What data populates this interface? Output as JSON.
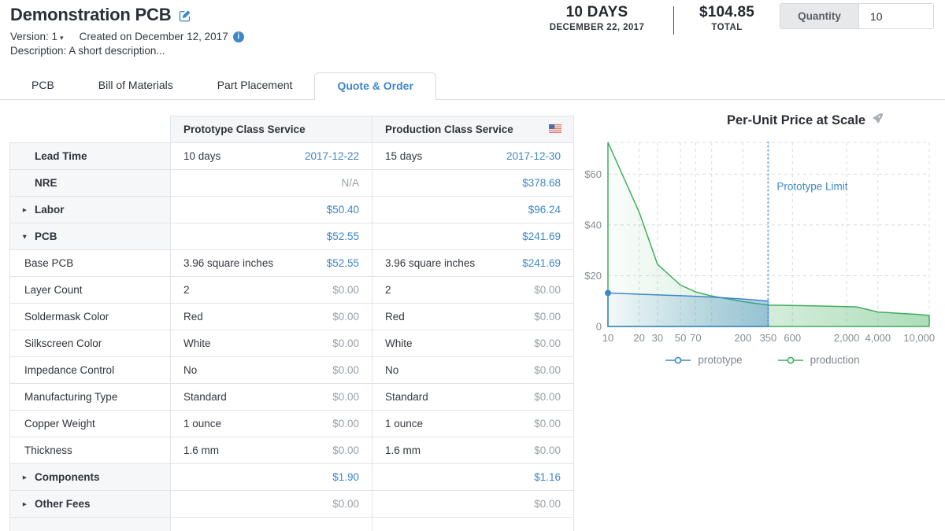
{
  "header": {
    "title": "Demonstration PCB",
    "version_label": "Version: 1",
    "created": "Created on December 12, 2017",
    "description": "Description: A short description...",
    "lead_time_value": "10 DAYS",
    "lead_time_date": "DECEMBER 22, 2017",
    "total_value": "$104.85",
    "total_label": "TOTAL",
    "quantity_label": "Quantity",
    "quantity_value": "10"
  },
  "icons": {
    "edit": "pencil-square",
    "info": "info-circle",
    "version_caret": "▾",
    "caret_collapsed": "▸",
    "caret_expanded": "▾",
    "production_flag": "us-flag",
    "chart_title_icon": "rocket"
  },
  "colors": {
    "accent_blue": "#3e87c8",
    "chart_green": "#3fae5c",
    "muted_gray": "#9aa1a8"
  },
  "tabs": [
    {
      "label": "PCB",
      "active": false
    },
    {
      "label": "Bill of Materials",
      "active": false
    },
    {
      "label": "Part Placement",
      "active": false
    },
    {
      "label": "Quote & Order",
      "active": true
    }
  ],
  "quote_table": {
    "columns": [
      "Prototype Class Service",
      "Production Class Service"
    ],
    "rows": [
      {
        "label": "Lead Time",
        "type": "section",
        "caret": "none",
        "proto_text": "10 days",
        "proto_value": "2017-12-22",
        "proto_style": "link",
        "prod_text": "15 days",
        "prod_value": "2017-12-30",
        "prod_style": "link"
      },
      {
        "label": "NRE",
        "type": "section",
        "caret": "none",
        "proto_text": "",
        "proto_value": "N/A",
        "proto_style": "muted",
        "prod_text": "",
        "prod_value": "$378.68",
        "prod_style": "link"
      },
      {
        "label": "Labor",
        "type": "section",
        "caret": "collapsed",
        "proto_text": "",
        "proto_value": "$50.40",
        "proto_style": "link",
        "prod_text": "",
        "prod_value": "$96.24",
        "prod_style": "link"
      },
      {
        "label": "PCB",
        "type": "section",
        "caret": "expanded",
        "proto_text": "",
        "proto_value": "$52.55",
        "proto_style": "link",
        "prod_text": "",
        "prod_value": "$241.69",
        "prod_style": "link"
      },
      {
        "label": "Base PCB",
        "type": "sub",
        "caret": "none",
        "proto_text": "3.96 square inches",
        "proto_value": "$52.55",
        "proto_style": "link",
        "prod_text": "3.96 square inches",
        "prod_value": "$241.69",
        "prod_style": "link"
      },
      {
        "label": "Layer Count",
        "type": "sub",
        "caret": "none",
        "proto_text": "2",
        "proto_value": "$0.00",
        "proto_style": "muted",
        "prod_text": "2",
        "prod_value": "$0.00",
        "prod_style": "muted"
      },
      {
        "label": "Soldermask Color",
        "type": "sub",
        "caret": "none",
        "proto_text": "Red",
        "proto_value": "$0.00",
        "proto_style": "muted",
        "prod_text": "Red",
        "prod_value": "$0.00",
        "prod_style": "muted"
      },
      {
        "label": "Silkscreen Color",
        "type": "sub",
        "caret": "none",
        "proto_text": "White",
        "proto_value": "$0.00",
        "proto_style": "muted",
        "prod_text": "White",
        "prod_value": "$0.00",
        "prod_style": "muted"
      },
      {
        "label": "Impedance Control",
        "type": "sub",
        "caret": "none",
        "proto_text": "No",
        "proto_value": "$0.00",
        "proto_style": "muted",
        "prod_text": "No",
        "prod_value": "$0.00",
        "prod_style": "muted"
      },
      {
        "label": "Manufacturing Type",
        "type": "sub",
        "caret": "none",
        "proto_text": "Standard",
        "proto_value": "$0.00",
        "proto_style": "muted",
        "prod_text": "Standard",
        "prod_value": "$0.00",
        "prod_style": "muted"
      },
      {
        "label": "Copper Weight",
        "type": "sub",
        "caret": "none",
        "proto_text": "1 ounce",
        "proto_value": "$0.00",
        "proto_style": "muted",
        "prod_text": "1 ounce",
        "prod_value": "$0.00",
        "prod_style": "muted"
      },
      {
        "label": "Thickness",
        "type": "sub",
        "caret": "none",
        "proto_text": "1.6 mm",
        "proto_value": "$0.00",
        "proto_style": "muted",
        "prod_text": "1.6 mm",
        "prod_value": "$0.00",
        "prod_style": "muted"
      },
      {
        "label": "Components",
        "type": "section",
        "caret": "collapsed",
        "proto_text": "",
        "proto_value": "$1.90",
        "proto_style": "link",
        "prod_text": "",
        "prod_value": "$1.16",
        "prod_style": "link"
      },
      {
        "label": "Other Fees",
        "type": "section",
        "caret": "collapsed",
        "proto_text": "",
        "proto_value": "$0.00",
        "proto_style": "muted",
        "prod_text": "",
        "prod_value": "$0.00",
        "prod_style": "muted"
      },
      {
        "label": "",
        "type": "section",
        "caret": "none",
        "proto_text": "",
        "proto_value": "",
        "proto_style": "muted",
        "prod_text": "",
        "prod_value": "",
        "prod_style": "muted"
      }
    ]
  },
  "chart_data": {
    "type": "line",
    "title": "Per-Unit Price at Scale",
    "x_scale": "log",
    "xlim": [
      10,
      12500
    ],
    "ylim": [
      0,
      72.5
    ],
    "x_ticks": [
      10,
      20,
      30,
      50,
      70,
      200,
      350,
      600,
      2000,
      4000,
      10000
    ],
    "x_tick_labels": [
      "10",
      "20",
      "30",
      "50",
      "70",
      "200",
      "350",
      "600",
      "2,000",
      "4,000",
      "10,000"
    ],
    "x_gridlines": [
      10,
      20,
      30,
      50,
      70,
      100,
      200,
      350,
      600,
      2000,
      4000,
      12500
    ],
    "y_ticks": [
      0,
      20,
      40,
      60
    ],
    "y_tick_labels": [
      "0",
      "$20",
      "$40",
      "$60"
    ],
    "y_gridlines": [
      0,
      20,
      40,
      60,
      72.5
    ],
    "grid": true,
    "annotation": {
      "label": "Prototype Limit",
      "x": 350,
      "label_y": 55
    },
    "series": [
      {
        "name": "prototype",
        "color": "#3e87c8",
        "start_dot": true,
        "area": true,
        "points": [
          [
            10,
            13.2
          ],
          [
            20,
            12.7
          ],
          [
            50,
            12.1
          ],
          [
            100,
            11.6
          ],
          [
            200,
            10.8
          ],
          [
            350,
            10.0
          ]
        ]
      },
      {
        "name": "production",
        "color": "#3fae5c",
        "start_dot": false,
        "area": true,
        "points": [
          [
            10,
            72.5
          ],
          [
            20,
            45
          ],
          [
            30,
            24.5
          ],
          [
            50,
            16.3
          ],
          [
            70,
            13.6
          ],
          [
            100,
            12
          ],
          [
            200,
            9.8
          ],
          [
            350,
            8.4
          ],
          [
            600,
            8.3
          ],
          [
            1000,
            8.1
          ],
          [
            2000,
            7.8
          ],
          [
            2500,
            7.7
          ],
          [
            4000,
            5.7
          ],
          [
            10000,
            4.7
          ],
          [
            12500,
            4.3
          ]
        ]
      }
    ],
    "legend": [
      {
        "label": "prototype",
        "color": "#3e87c8"
      },
      {
        "label": "production",
        "color": "#3fae5c"
      }
    ],
    "legend_position": "bottom"
  }
}
